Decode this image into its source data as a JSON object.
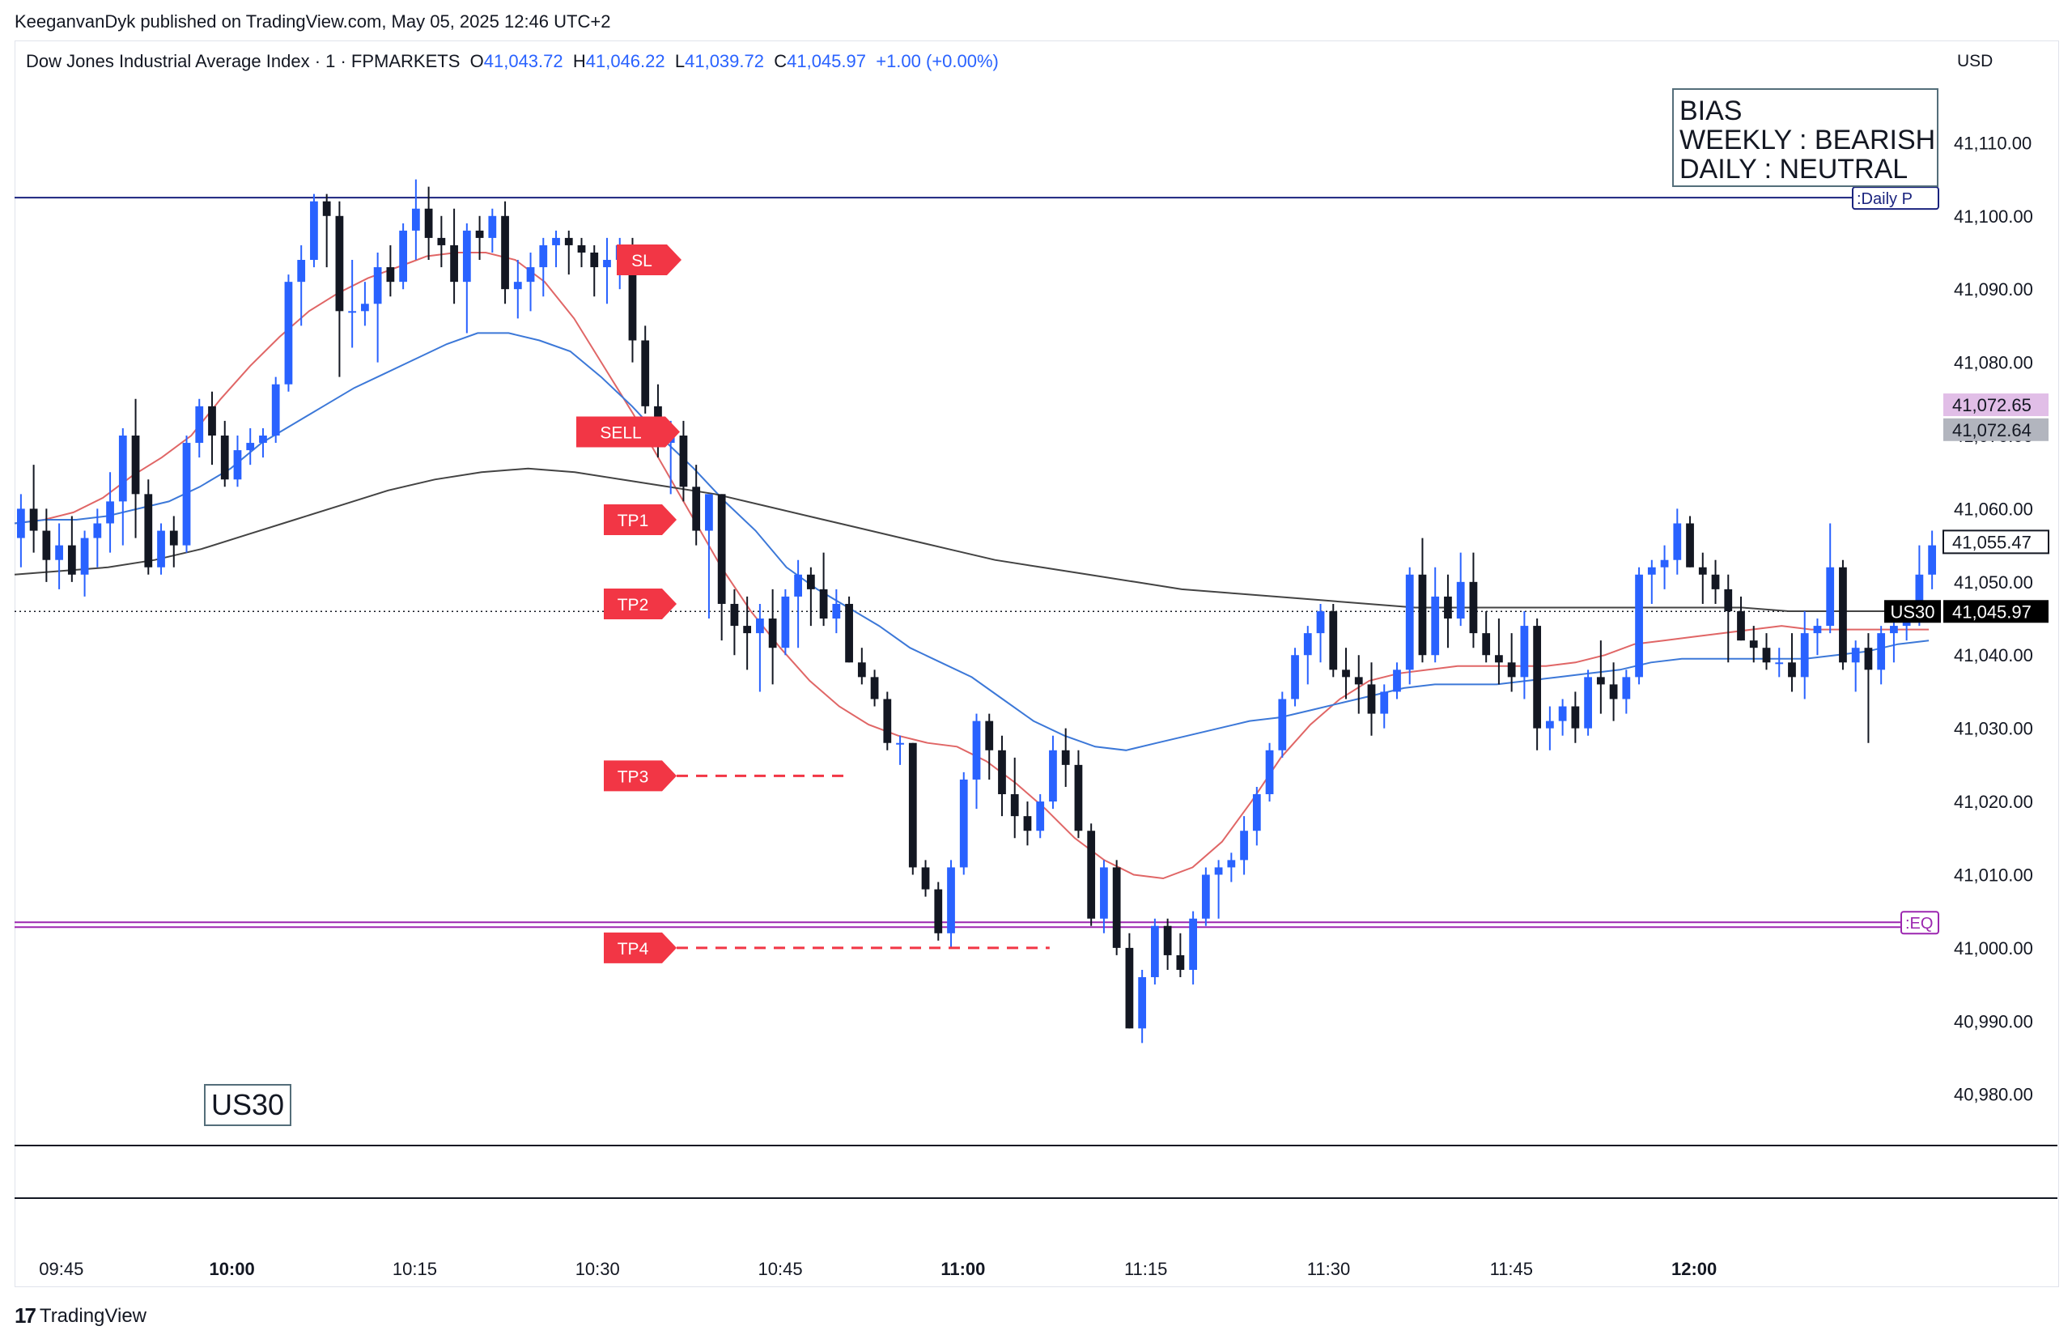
{
  "publisher": "KeeganvanDyk published on TradingView.com, May 05, 2025 12:46 UTC+2",
  "legend": {
    "title": "Dow Jones Industrial Average Index · 1 · FPMARKETS",
    "o_label": "O",
    "o": "41,043.72",
    "h_label": "H",
    "h": "41,046.22",
    "l_label": "L",
    "l": "41,039.72",
    "c_label": "C",
    "c": "41,045.97",
    "change": "+1.00 (+0.00%)"
  },
  "currency": "USD",
  "brand": "TradingView",
  "colors": {
    "up": "#2962ff",
    "down": "#131722",
    "ema_fast": "#e06666",
    "ema_mid": "#3c78d8",
    "ema_slow": "#434343",
    "signal": "#f23645",
    "daily_line": "#1a237e",
    "eq_line": "#9c27b0"
  },
  "chart_data": {
    "type": "candlestick",
    "instrument": "Dow Jones Industrial Average Index",
    "timeframe": "1",
    "x_tick_labels": [
      "09:45",
      "10:00",
      "10:15",
      "10:30",
      "10:45",
      "11:00",
      "11:15",
      "11:30",
      "11:45",
      "12:00"
    ],
    "x_tick_bold": [
      false,
      true,
      false,
      false,
      false,
      true,
      false,
      false,
      false,
      true
    ],
    "y_tick_labels": [
      "41,110.00",
      "41,100.00",
      "41,090.00",
      "41,080.00",
      "41,070.00",
      "41,060.00",
      "41,050.00",
      "41,040.00",
      "41,030.00",
      "41,020.00",
      "41,010.00",
      "41,000.00",
      "40,990.00",
      "40,980.00"
    ],
    "y_range": [
      40973,
      41119
    ],
    "candles": [
      [
        41056,
        41062,
        41052,
        41060
      ],
      [
        41060,
        41066,
        41054,
        41057
      ],
      [
        41057,
        41060,
        41050,
        41053
      ],
      [
        41053,
        41058,
        41049,
        41055
      ],
      [
        41055,
        41059,
        41050,
        41051
      ],
      [
        41051,
        41057,
        41048,
        41056
      ],
      [
        41056,
        41060,
        41052,
        41058
      ],
      [
        41058,
        41065,
        41054,
        41061
      ],
      [
        41061,
        41071,
        41055,
        41070
      ],
      [
        41070,
        41075,
        41056,
        41062
      ],
      [
        41062,
        41064,
        41051,
        41052
      ],
      [
        41052,
        41058,
        41051,
        41057
      ],
      [
        41057,
        41059,
        41052,
        41055
      ],
      [
        41055,
        41070,
        41054,
        41069
      ],
      [
        41069,
        41075,
        41067,
        41074
      ],
      [
        41074,
        41076,
        41066,
        41070
      ],
      [
        41070,
        41072,
        41063,
        41064
      ],
      [
        41064,
        41070,
        41063,
        41068
      ],
      [
        41068,
        41071,
        41066,
        41069
      ],
      [
        41069,
        41071,
        41067,
        41070
      ],
      [
        41070,
        41078,
        41069,
        41077
      ],
      [
        41077,
        41092,
        41076,
        41091
      ],
      [
        41091,
        41096,
        41085,
        41094
      ],
      [
        41094,
        41103,
        41093,
        41102
      ],
      [
        41102,
        41103,
        41093,
        41100
      ],
      [
        41100,
        41102,
        41078,
        41087
      ],
      [
        41087,
        41094,
        41082,
        41087
      ],
      [
        41087,
        41091,
        41085,
        41088
      ],
      [
        41088,
        41095,
        41080,
        41093
      ],
      [
        41093,
        41096,
        41089,
        41091
      ],
      [
        41091,
        41099,
        41090,
        41098
      ],
      [
        41098,
        41105,
        41094,
        41101
      ],
      [
        41101,
        41104,
        41094,
        41097
      ],
      [
        41097,
        41100,
        41093,
        41096
      ],
      [
        41096,
        41101,
        41088,
        41091
      ],
      [
        41091,
        41099,
        41084,
        41098
      ],
      [
        41098,
        41100,
        41094,
        41097
      ],
      [
        41097,
        41101,
        41095,
        41100
      ],
      [
        41100,
        41102,
        41088,
        41090
      ],
      [
        41090,
        41094,
        41086,
        41091
      ],
      [
        41091,
        41095,
        41087,
        41093
      ],
      [
        41093,
        41097,
        41089,
        41096
      ],
      [
        41096,
        41098,
        41093,
        41097
      ],
      [
        41097,
        41098,
        41092,
        41096
      ],
      [
        41096,
        41097,
        41093,
        41095
      ],
      [
        41095,
        41096,
        41089,
        41093
      ],
      [
        41093,
        41097,
        41088,
        41094
      ],
      [
        41094,
        41097,
        41090,
        41096
      ],
      [
        41096,
        41097,
        41080,
        41083
      ],
      [
        41083,
        41085,
        41073,
        41074
      ],
      [
        41074,
        41077,
        41067,
        41069
      ],
      [
        41069,
        41072,
        41062,
        41070
      ],
      [
        41070,
        41072,
        41061,
        41063
      ],
      [
        41063,
        41066,
        41055,
        41057
      ],
      [
        41057,
        41062,
        41045,
        41062
      ],
      [
        41062,
        41062,
        41042,
        41047
      ],
      [
        41047,
        41049,
        41040,
        41044
      ],
      [
        41044,
        41048,
        41038,
        41043
      ],
      [
        41043,
        41047,
        41035,
        41045
      ],
      [
        41045,
        41049,
        41036,
        41041
      ],
      [
        41041,
        41049,
        41040,
        41048
      ],
      [
        41048,
        41053,
        41041,
        41051
      ],
      [
        41051,
        41052,
        41044,
        41049
      ],
      [
        41049,
        41054,
        41044,
        41045
      ],
      [
        41045,
        41049,
        41043,
        41047
      ],
      [
        41047,
        41048,
        41039,
        41039
      ],
      [
        41039,
        41041,
        41036,
        41037
      ],
      [
        41037,
        41038,
        41033,
        41034
      ],
      [
        41034,
        41035,
        41027,
        41028
      ],
      [
        41028,
        41029,
        41025,
        41028
      ],
      [
        41028,
        41028,
        41010,
        41011
      ],
      [
        41011,
        41012,
        41007,
        41008
      ],
      [
        41008,
        41009,
        41001,
        41002
      ],
      [
        41002,
        41012,
        41000,
        41011
      ],
      [
        41011,
        41024,
        41010,
        41023
      ],
      [
        41023,
        41032,
        41019,
        41031
      ],
      [
        41031,
        41032,
        41023,
        41027
      ],
      [
        41027,
        41029,
        41018,
        41021
      ],
      [
        41021,
        41026,
        41015,
        41018
      ],
      [
        41018,
        41020,
        41014,
        41016
      ],
      [
        41016,
        41021,
        41015,
        41020
      ],
      [
        41020,
        41029,
        41019,
        41027
      ],
      [
        41027,
        41030,
        41022,
        41025
      ],
      [
        41025,
        41027,
        41015,
        41016
      ],
      [
        41016,
        41017,
        41003,
        41004
      ],
      [
        41004,
        41012,
        41002,
        41011
      ],
      [
        41011,
        41012,
        40999,
        41000
      ],
      [
        41000,
        41002,
        40989,
        40989
      ],
      [
        40989,
        40997,
        40987,
        40996
      ],
      [
        40996,
        41004,
        40995,
        41003
      ],
      [
        41003,
        41004,
        40997,
        40999
      ],
      [
        40999,
        41002,
        40996,
        40997
      ],
      [
        40997,
        41005,
        40995,
        41004
      ],
      [
        41004,
        41011,
        41003,
        41010
      ],
      [
        41010,
        41012,
        41004,
        41011
      ],
      [
        41011,
        41013,
        41009,
        41012
      ],
      [
        41012,
        41018,
        41010,
        41016
      ],
      [
        41016,
        41022,
        41014,
        41021
      ],
      [
        41021,
        41028,
        41020,
        41027
      ],
      [
        41027,
        41035,
        41026,
        41034
      ],
      [
        41034,
        41041,
        41033,
        41040
      ],
      [
        41040,
        41044,
        41036,
        41043
      ],
      [
        41043,
        41047,
        41039,
        41046
      ],
      [
        41046,
        41047,
        41037,
        41038
      ],
      [
        41038,
        41041,
        41034,
        41037
      ],
      [
        41037,
        41040,
        41032,
        41036
      ],
      [
        41036,
        41039,
        41029,
        41032
      ],
      [
        41032,
        41036,
        41030,
        41035
      ],
      [
        41035,
        41039,
        41034,
        41038
      ],
      [
        41038,
        41052,
        41036,
        41051
      ],
      [
        41051,
        41056,
        41039,
        41040
      ],
      [
        41040,
        41052,
        41039,
        41048
      ],
      [
        41048,
        41051,
        41041,
        41045
      ],
      [
        41045,
        41054,
        41044,
        41050
      ],
      [
        41050,
        41054,
        41041,
        41043
      ],
      [
        41043,
        41046,
        41039,
        41040
      ],
      [
        41040,
        41045,
        41036,
        41039
      ],
      [
        41039,
        41043,
        41035,
        41037
      ],
      [
        41037,
        41046,
        41034,
        41044
      ],
      [
        41044,
        41045,
        41027,
        41030
      ],
      [
        41030,
        41033,
        41027,
        41031
      ],
      [
        41031,
        41034,
        41029,
        41033
      ],
      [
        41033,
        41035,
        41028,
        41030
      ],
      [
        41030,
        41038,
        41029,
        41037
      ],
      [
        41037,
        41042,
        41032,
        41036
      ],
      [
        41036,
        41039,
        41031,
        41034
      ],
      [
        41034,
        41038,
        41032,
        41037
      ],
      [
        41037,
        41052,
        41036,
        41051
      ],
      [
        41051,
        41053,
        41047,
        41052
      ],
      [
        41052,
        41055,
        41049,
        41053
      ],
      [
        41053,
        41060,
        41051,
        41058
      ],
      [
        41058,
        41059,
        41052,
        41052
      ],
      [
        41052,
        41054,
        41047,
        41051
      ],
      [
        41051,
        41053,
        41047,
        41049
      ],
      [
        41049,
        41051,
        41039,
        41046
      ],
      [
        41046,
        41048,
        41042,
        41042
      ],
      [
        41042,
        41044,
        41039,
        41041
      ],
      [
        41041,
        41043,
        41038,
        41039
      ],
      [
        41039,
        41041,
        41037,
        41039
      ],
      [
        41039,
        41043,
        41035,
        41037
      ],
      [
        41037,
        41046,
        41034,
        41043
      ],
      [
        41043,
        41045,
        41040,
        41044
      ],
      [
        41044,
        41058,
        41043,
        41052
      ],
      [
        41052,
        41053,
        41038,
        41039
      ],
      [
        41039,
        41042,
        41035,
        41041
      ],
      [
        41041,
        41043,
        41028,
        41038
      ],
      [
        41038,
        41044,
        41036,
        41043
      ],
      [
        41043,
        41045,
        41039,
        41044
      ],
      [
        41044,
        41046,
        41042,
        41045
      ],
      [
        41045,
        41055,
        41044,
        41051
      ],
      [
        41051,
        41057,
        41049,
        41055
      ]
    ],
    "indicators": [
      {
        "color": "#e06666",
        "values": [
          41058,
          41058.5,
          41059.5,
          41061.5,
          41064.5,
          41067,
          41070,
          41075,
          41079.5,
          41083.5,
          41087,
          41089.5,
          41091.5,
          41093,
          41094.5,
          41095,
          41095,
          41094,
          41091,
          41086,
          41079.5,
          41073,
          41066,
          41059,
          41052,
          41046,
          41041,
          41036.5,
          41033,
          41030.5,
          41029,
          41028,
          41027.5,
          41025.5,
          41022.5,
          41019,
          41015,
          41012,
          41010,
          41009.5,
          41011,
          41014.5,
          41020,
          41026,
          41030.5,
          41034,
          41036.5,
          41037.5,
          41038,
          41038.5,
          41038.5,
          41038.5,
          41038.5,
          41039,
          41040,
          41041.5,
          41042,
          41042.5,
          41043,
          41043.5,
          41044,
          41043.5,
          41043.5,
          41043.5,
          41043.5,
          41043.5
        ]
      },
      {
        "color": "#3c78d8",
        "values": [
          41058,
          41058.5,
          41058.5,
          41059,
          41060,
          41061,
          41063,
          41065.5,
          41069,
          41071.5,
          41074,
          41076.5,
          41078.5,
          41080.5,
          41082.5,
          41084,
          41084,
          41083,
          41081.5,
          41078,
          41074,
          41069.5,
          41065.5,
          41061,
          41057,
          41052,
          41049,
          41046.5,
          41044,
          41041,
          41039,
          41037,
          41034,
          41031,
          41029,
          41027.5,
          41027,
          41028,
          41029,
          41030,
          41031,
          41031.5,
          41032.5,
          41033.5,
          41034.5,
          41035.5,
          41036,
          41036,
          41036,
          41036.5,
          41037,
          41037.5,
          41038,
          41039,
          41039.5,
          41039.5,
          41039.5,
          41039.5,
          41039.5,
          41040,
          41040.5,
          41041.5,
          41042
        ]
      },
      {
        "color": "#434343",
        "values": [
          41051,
          41051.5,
          41052,
          41053,
          41054.5,
          41056.5,
          41058.5,
          41060.5,
          41062.5,
          41064,
          41065,
          41065.5,
          41065,
          41064,
          41063,
          41062,
          41060.5,
          41059,
          41057.5,
          41056,
          41054.5,
          41053,
          41052,
          41051,
          41050,
          41049,
          41048.5,
          41048,
          41047.5,
          41047,
          41046.5,
          41046.5,
          41046.5,
          41046.5,
          41046.5,
          41046.5,
          41046.5,
          41046.5,
          41046,
          41046,
          41046,
          41046
        ]
      }
    ],
    "indicator_x_end": [
      0.26,
      0.32,
      0.4
    ],
    "horizontal_lines": [
      {
        "name": "daily-p",
        "price": 41102.5,
        "color": "#1a237e",
        "label": ":Daily P"
      },
      {
        "name": "eq",
        "price": 41003.5,
        "color": "#9c27b0",
        "label": ":EQ",
        "double": true
      }
    ],
    "last_price_line": 41045.97,
    "signals": [
      {
        "label": "SL",
        "price": 41094
      },
      {
        "label": "SELL",
        "price": 41070.5
      },
      {
        "label": "TP1",
        "price": 41058.5
      },
      {
        "label": "TP2",
        "price": 41047
      },
      {
        "label": "TP3",
        "price": 41023.5,
        "dashed_to": 0.434
      },
      {
        "label": "TP4",
        "price": 41000,
        "dashed_to": 0.538
      }
    ],
    "price_badges": [
      {
        "text": "41,072.65",
        "price": 41074.2,
        "bg": "#e1bee7",
        "fg": "#131722"
      },
      {
        "text": "41,072.64",
        "price": 41070.8,
        "bg": "#b2b5be",
        "fg": "#131722"
      },
      {
        "text": "41,055.47",
        "price": 41055.47,
        "bg": "#ffffff",
        "fg": "#131722",
        "border": "#131722"
      },
      {
        "text": "41,045.97",
        "price": 41045.97,
        "bg": "#000000",
        "fg": "#ffffff"
      }
    ],
    "symbol_badge": "US30",
    "bias_box": [
      "BIAS",
      "WEEKLY : BEARISH",
      "DAILY : NEUTRAL"
    ],
    "watermark": "US30"
  }
}
